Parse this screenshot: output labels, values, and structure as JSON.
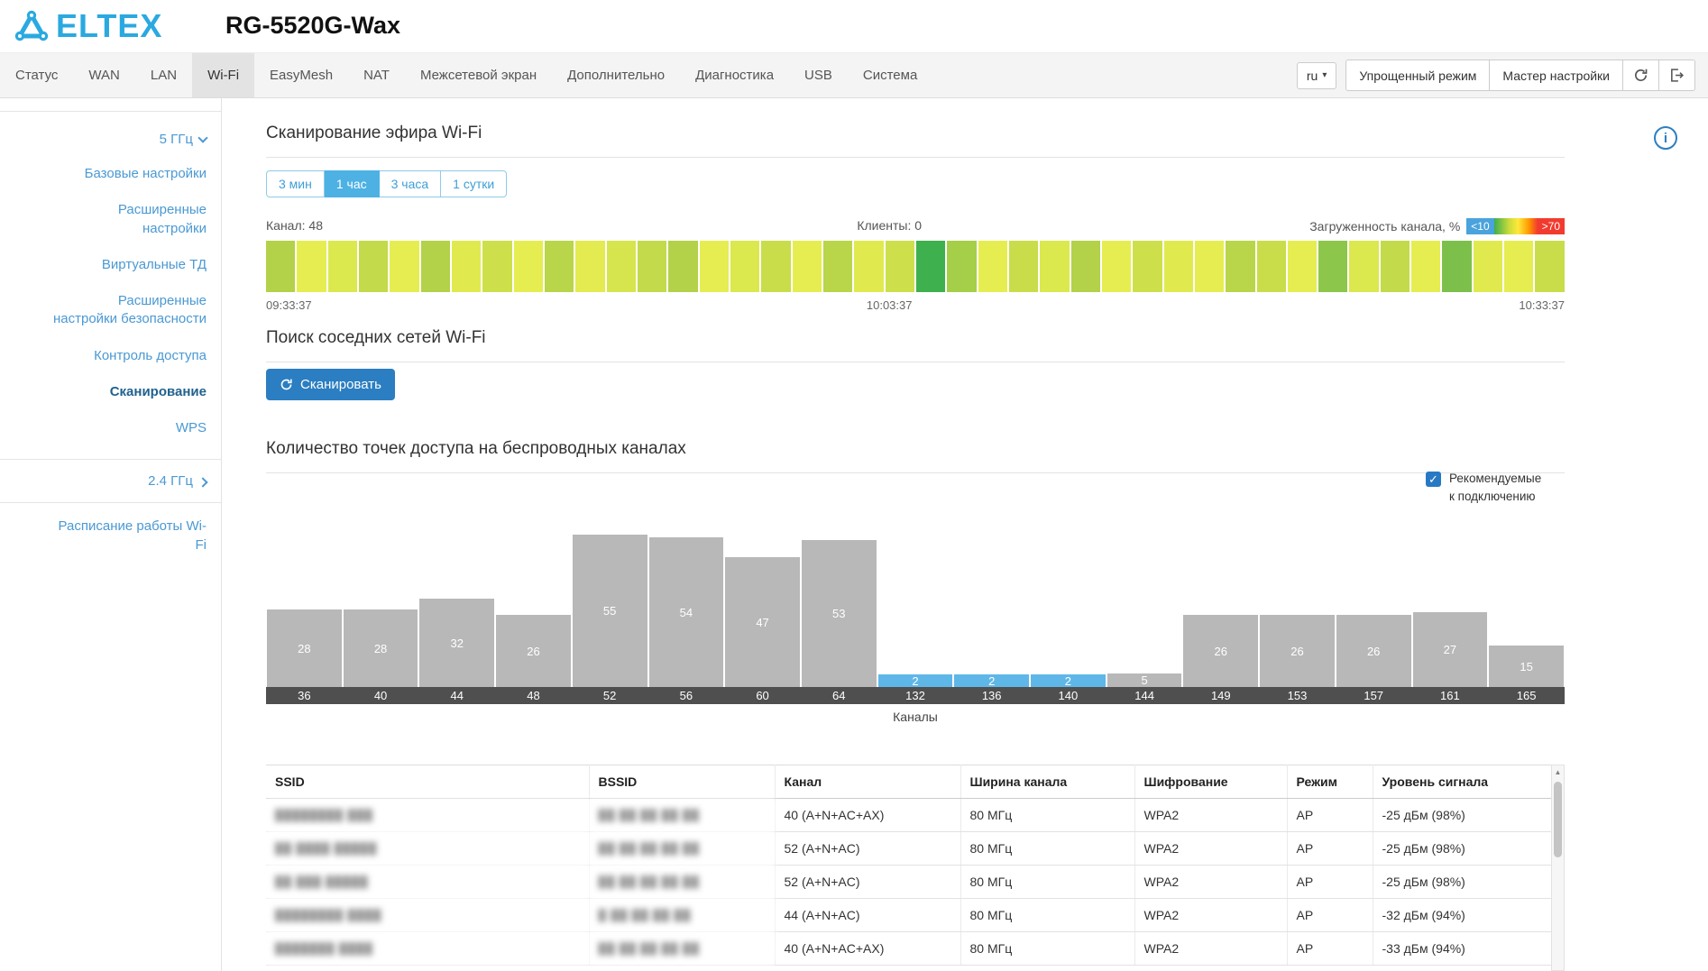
{
  "header": {
    "logo_text": "ELTEX",
    "device_title": "RG-5520G-Wax"
  },
  "nav": {
    "tabs": [
      {
        "label": "Статус"
      },
      {
        "label": "WAN"
      },
      {
        "label": "LAN"
      },
      {
        "label": "Wi-Fi",
        "active": true
      },
      {
        "label": "EasyMesh"
      },
      {
        "label": "NAT"
      },
      {
        "label": "Межсетевой экран"
      },
      {
        "label": "Дополнительно"
      },
      {
        "label": "Диагностика"
      },
      {
        "label": "USB"
      },
      {
        "label": "Система"
      }
    ],
    "language": "ru",
    "simple_mode_label": "Упрощенный режим",
    "wizard_label": "Мастер настройки"
  },
  "sidebar": {
    "band5_label": "5 ГГц",
    "band5_items": [
      {
        "label": "Базовые настройки"
      },
      {
        "label": "Расширенные настройки"
      },
      {
        "label": "Виртуальные ТД"
      },
      {
        "label": "Расширенные настройки безопасности"
      },
      {
        "label": "Контроль доступа"
      },
      {
        "label": "Сканирование",
        "active": true
      },
      {
        "label": "WPS"
      }
    ],
    "band24_label": "2.4 ГГц",
    "schedule_label": "Расписание работы Wi-Fi"
  },
  "scan_section": {
    "title": "Сканирование эфира Wi-Fi",
    "ranges": [
      {
        "label": "3 мин"
      },
      {
        "label": "1 час",
        "active": true
      },
      {
        "label": "3 часа"
      },
      {
        "label": "1 сутки"
      }
    ],
    "channel_label": "Канал: 48",
    "clients_label": "Клиенты: 0",
    "load_label": "Загруженность канала, %",
    "legend_low": "<10",
    "legend_high": ">70",
    "time_start": "09:33:37",
    "time_mid": "10:03:37",
    "time_end": "10:33:37",
    "strip_colors": [
      "#b3d149",
      "#e6ed51",
      "#dbe84e",
      "#c3da4a",
      "#e6ed51",
      "#b3d149",
      "#e0ea4f",
      "#cde04c",
      "#e6ed51",
      "#b9d54a",
      "#e3eb50",
      "#d6e54d",
      "#c3da4a",
      "#b3d149",
      "#e6ed51",
      "#dbe84e",
      "#c9dd4b",
      "#e6ed51",
      "#b9d54a",
      "#e0ea4f",
      "#cde04c",
      "#3eb04d",
      "#a5cf48",
      "#e6ed51",
      "#c9dd4b",
      "#dbe84e",
      "#b3d149",
      "#e6ed51",
      "#cde04c",
      "#e0ea4f",
      "#e6ed51",
      "#b9d54a",
      "#c9dd4b",
      "#e6ed51",
      "#8cc64a",
      "#dbe84e",
      "#c3da4a",
      "#e6ed51",
      "#7cc04b",
      "#e0ea4f",
      "#e6ed51",
      "#c9dd4b"
    ]
  },
  "neighbor_section": {
    "title": "Поиск соседних сетей Wi-Fi",
    "scan_button_label": "Сканировать"
  },
  "chart_section": {
    "title": "Количество точек доступа на беспроводных каналах",
    "checkbox_label_line1": "Рекомендуемые",
    "checkbox_label_line2": "к подключению",
    "checkbox_checked": true
  },
  "chart_data": {
    "type": "bar",
    "title": "Количество точек доступа на беспроводных каналах",
    "xlabel": "Каналы",
    "categories": [
      "36",
      "40",
      "44",
      "48",
      "52",
      "56",
      "60",
      "64",
      "132",
      "136",
      "140",
      "144",
      "149",
      "153",
      "157",
      "161",
      "165"
    ],
    "values": [
      28,
      28,
      32,
      26,
      55,
      54,
      47,
      53,
      2,
      2,
      2,
      5,
      26,
      26,
      26,
      27,
      15
    ],
    "highlighted_channels": [
      "132",
      "136",
      "140"
    ],
    "bar_color": "#b8b8b8",
    "highlight_color": "#5fb7e8",
    "axis_strip_color": "#4f4f4f",
    "ylim": [
      0,
      55
    ],
    "legend_position": "none",
    "grid": false
  },
  "table": {
    "headers": [
      "SSID",
      "BSSID",
      "Канал",
      "Ширина канала",
      "Шифрование",
      "Режим",
      "Уровень сигнала"
    ],
    "rows": [
      {
        "ssid": "████████ ███",
        "bssid": "██ ██ ██ ██ ██",
        "channel": "40 (A+N+AC+AX)",
        "width": "80 МГц",
        "encryption": "WPA2",
        "mode": "AP",
        "signal": "-25 дБм (98%)"
      },
      {
        "ssid": "██ ████ █████",
        "bssid": "██ ██ ██ ██ ██",
        "channel": "52 (A+N+AC)",
        "width": "80 МГц",
        "encryption": "WPA2",
        "mode": "AP",
        "signal": "-25 дБм (98%)"
      },
      {
        "ssid": "██ ███ █████",
        "bssid": "██ ██ ██ ██ ██",
        "channel": "52 (A+N+AC)",
        "width": "80 МГц",
        "encryption": "WPA2",
        "mode": "AP",
        "signal": "-25 дБм (98%)"
      },
      {
        "ssid": "████████ ████",
        "bssid": "█ ██ ██ ██ ██",
        "channel": "44 (A+N+AC)",
        "width": "80 МГц",
        "encryption": "WPA2",
        "mode": "AP",
        "signal": "-32 дБм (94%)"
      },
      {
        "ssid": "███████ ████",
        "bssid": "██ ██ ██ ██ ██",
        "channel": "40 (A+N+AC+AX)",
        "width": "80 МГц",
        "encryption": "WPA2",
        "mode": "AP",
        "signal": "-33 дБм (94%)"
      }
    ]
  }
}
